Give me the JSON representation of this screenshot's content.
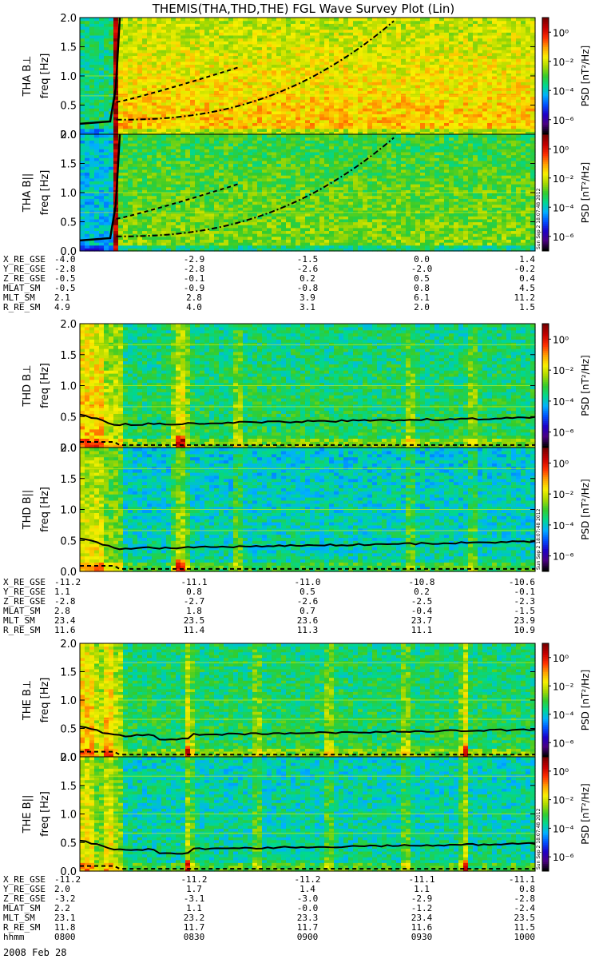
{
  "title": "THEMIS(THA,THD,THE) FGL Wave Survey Plot (Lin)",
  "stamp": "Sun Sep  2 18:07:48 2012",
  "date_label": "2008 Feb 28",
  "colors": {
    "colormap": [
      "#000000",
      "#4b0082",
      "#1e00c8",
      "#0050ff",
      "#00b0ff",
      "#00d890",
      "#34cc2c",
      "#a8d800",
      "#f8f000",
      "#ffa000",
      "#ff3000",
      "#c80000",
      "#7a0000"
    ],
    "trace": "#000000",
    "band_line": "#f0f000"
  },
  "chart_data": [
    {
      "type": "heatmap",
      "id": "tha_bperp",
      "ylabel_probe": "THA",
      "ylabel_comp": "B⊥",
      "ylabel_freq": "freq [Hz]",
      "ylim": [
        0,
        2.0
      ],
      "yticks": [
        "0.0",
        "0.5",
        "1.0",
        "1.5",
        "2.0"
      ],
      "colorbar": {
        "label": "PSD [nT²/Hz]",
        "ticks": [
          "10⁰",
          "10⁻²",
          "10⁻⁴",
          "10⁻⁶"
        ],
        "range_log10": [
          -7,
          1
        ]
      }
    },
    {
      "type": "heatmap",
      "id": "tha_bpar",
      "ylabel_probe": "THA",
      "ylabel_comp": "B||",
      "ylabel_freq": "freq [Hz]",
      "ylim": [
        0,
        2.0
      ],
      "yticks": [
        "0.0",
        "0.5",
        "1.0",
        "1.5",
        "2.0"
      ],
      "colorbar": {
        "label": "PSD [nT²/Hz]",
        "ticks": [
          "10⁰",
          "10⁻²",
          "10⁻⁴",
          "10⁻⁶"
        ],
        "range_log10": [
          -7,
          1
        ]
      }
    },
    {
      "type": "heatmap",
      "id": "thd_bperp",
      "ylabel_probe": "THD",
      "ylabel_comp": "B⊥",
      "ylabel_freq": "freq [Hz]",
      "ylim": [
        0,
        2.0
      ],
      "yticks": [
        "0.0",
        "0.5",
        "1.0",
        "1.5",
        "2.0"
      ],
      "colorbar": {
        "label": "PSD [nT²/Hz]",
        "ticks": [
          "10⁰",
          "10⁻²",
          "10⁻⁴",
          "10⁻⁶"
        ],
        "range_log10": [
          -7,
          1
        ]
      }
    },
    {
      "type": "heatmap",
      "id": "thd_bpar",
      "ylabel_probe": "THD",
      "ylabel_comp": "B||",
      "ylabel_freq": "freq [Hz]",
      "ylim": [
        0,
        2.0
      ],
      "yticks": [
        "0.0",
        "0.5",
        "1.0",
        "1.5",
        "2.0"
      ],
      "colorbar": {
        "label": "PSD [nT²/Hz]",
        "ticks": [
          "10⁰",
          "10⁻²",
          "10⁻⁴",
          "10⁻⁶"
        ],
        "range_log10": [
          -7,
          1
        ]
      }
    },
    {
      "type": "heatmap",
      "id": "the_bperp",
      "ylabel_probe": "THE",
      "ylabel_comp": "B⊥",
      "ylabel_freq": "freq [Hz]",
      "ylim": [
        0,
        2.0
      ],
      "yticks": [
        "0.0",
        "0.5",
        "1.0",
        "1.5",
        "2.0"
      ],
      "colorbar": {
        "label": "PSD [nT²/Hz]",
        "ticks": [
          "10⁰",
          "10⁻²",
          "10⁻⁴",
          "10⁻⁶"
        ],
        "range_log10": [
          -7,
          1
        ]
      }
    },
    {
      "type": "heatmap",
      "id": "the_bpar",
      "ylabel_probe": "THE",
      "ylabel_comp": "B||",
      "ylabel_freq": "freq [Hz]",
      "ylim": [
        0,
        2.0
      ],
      "yticks": [
        "0.0",
        "0.5",
        "1.0",
        "1.5",
        "2.0"
      ],
      "colorbar": {
        "label": "PSD [nT²/Hz]",
        "ticks": [
          "10⁰",
          "10⁻²",
          "10⁻⁴",
          "10⁻⁶"
        ],
        "range_log10": [
          -7,
          1
        ]
      }
    }
  ],
  "ephemeris": [
    {
      "probe": "THA",
      "rows": [
        {
          "label": "X_RE_GSE",
          "values": [
            "-4.0",
            "-2.9",
            "-1.5",
            "0.0",
            "1.4"
          ]
        },
        {
          "label": "Y_RE_GSE",
          "values": [
            "-2.8",
            "-2.8",
            "-2.6",
            "-2.0",
            "-0.2"
          ]
        },
        {
          "label": "Z_RE_GSE",
          "values": [
            "-0.5",
            "-0.1",
            "0.2",
            "0.5",
            "0.4"
          ]
        },
        {
          "label": "MLAT_SM",
          "values": [
            "-0.5",
            "-0.9",
            "-0.8",
            "0.8",
            "4.5"
          ]
        },
        {
          "label": "MLT_SM",
          "values": [
            "2.1",
            "2.8",
            "3.9",
            "6.1",
            "11.2"
          ]
        },
        {
          "label": "R_RE_SM",
          "values": [
            "4.9",
            "4.0",
            "3.1",
            "2.0",
            "1.5"
          ]
        }
      ]
    },
    {
      "probe": "THD",
      "rows": [
        {
          "label": "X_RE_GSE",
          "values": [
            "-11.2",
            "-11.1",
            "-11.0",
            "-10.8",
            "-10.6"
          ]
        },
        {
          "label": "Y_RE_GSE",
          "values": [
            "1.1",
            "0.8",
            "0.5",
            "0.2",
            "-0.1"
          ]
        },
        {
          "label": "Z_RE_GSE",
          "values": [
            "-2.8",
            "-2.7",
            "-2.6",
            "-2.5",
            "-2.3"
          ]
        },
        {
          "label": "MLAT_SM",
          "values": [
            "2.8",
            "1.8",
            "0.7",
            "-0.4",
            "-1.5"
          ]
        },
        {
          "label": "MLT_SM",
          "values": [
            "23.4",
            "23.5",
            "23.6",
            "23.7",
            "23.9"
          ]
        },
        {
          "label": "R_RE_SM",
          "values": [
            "11.6",
            "11.4",
            "11.3",
            "11.1",
            "10.9"
          ]
        }
      ]
    },
    {
      "probe": "THE",
      "rows": [
        {
          "label": "X_RE_GSE",
          "values": [
            "-11.2",
            "-11.2",
            "-11.2",
            "-11.1",
            "-11.1"
          ]
        },
        {
          "label": "Y_RE_GSE",
          "values": [
            "2.0",
            "1.7",
            "1.4",
            "1.1",
            "0.8"
          ]
        },
        {
          "label": "Z_RE_GSE",
          "values": [
            "-3.2",
            "-3.1",
            "-3.0",
            "-2.9",
            "-2.8"
          ]
        },
        {
          "label": "MLAT_SM",
          "values": [
            "2.2",
            "1.1",
            "-0.0",
            "-1.2",
            "-2.4"
          ]
        },
        {
          "label": "MLT_SM",
          "values": [
            "23.1",
            "23.2",
            "23.3",
            "23.4",
            "23.5"
          ]
        },
        {
          "label": "R_RE_SM",
          "values": [
            "11.8",
            "11.7",
            "11.7",
            "11.6",
            "11.5"
          ]
        },
        {
          "label": "hhmm",
          "values": [
            "0800",
            "0830",
            "0900",
            "0930",
            "1000"
          ]
        }
      ]
    }
  ]
}
